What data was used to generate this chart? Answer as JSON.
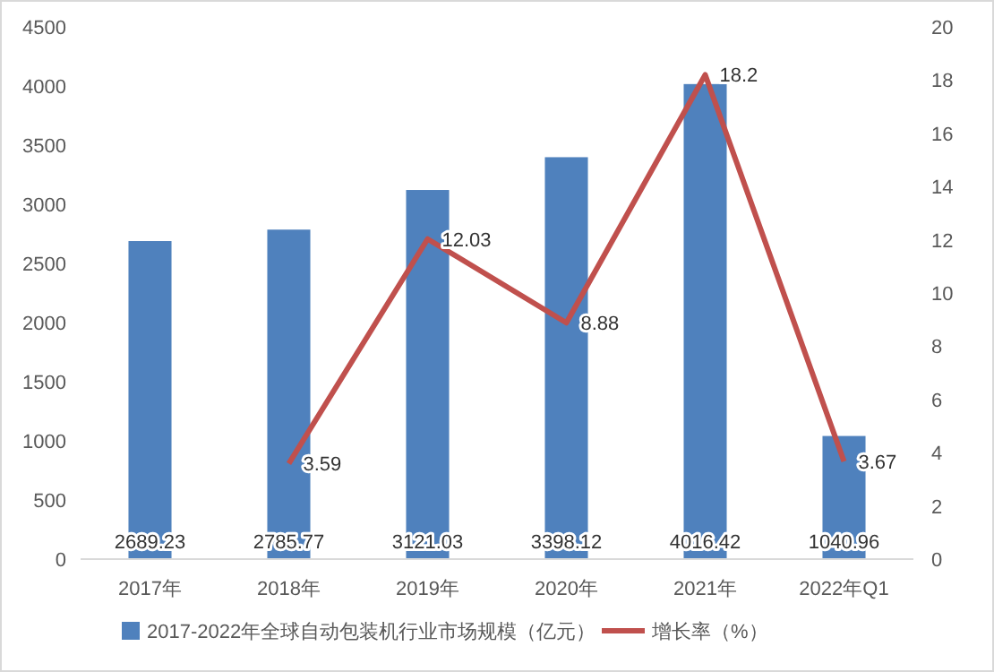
{
  "chart_data": {
    "type": "bar",
    "categories": [
      "2017年",
      "2018年",
      "2019年",
      "2020年",
      "2021年",
      "2022年Q1"
    ],
    "series": [
      {
        "name": "2017-2022年全球自动包装机行业市场规模（亿元）",
        "color": "#4f81bd",
        "values": [
          2689.23,
          2785.77,
          3121.03,
          3398.12,
          4016.42,
          1040.96
        ]
      },
      {
        "name": "增长率（%）",
        "type": "line",
        "axis": "y2",
        "color": "#c0504d",
        "values": [
          null,
          3.59,
          12.03,
          8.88,
          18.2,
          3.67
        ]
      }
    ],
    "ylim": [
      0,
      4500
    ],
    "yticks": [
      0,
      500,
      1000,
      1500,
      2000,
      2500,
      3000,
      3500,
      4000,
      4500
    ],
    "y2lim": [
      0,
      20
    ],
    "y2ticks": [
      0,
      2,
      4,
      6,
      8,
      10,
      12,
      14,
      16,
      18,
      20
    ],
    "data_labels": true,
    "legend": "bottom",
    "marker": "none",
    "grid": false
  }
}
